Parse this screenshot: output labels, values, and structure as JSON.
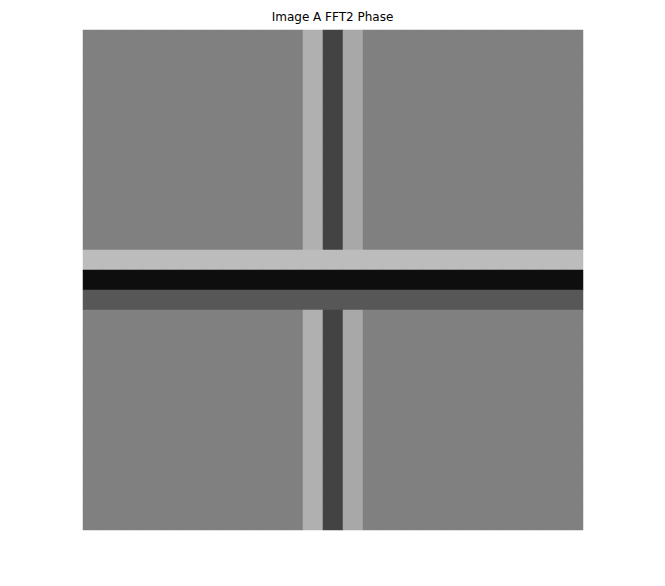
{
  "chart_data": {
    "type": "heatmap",
    "title": "Image A FFT2 Phase",
    "tick_labels": false,
    "grid": false,
    "zlim": [
      -3.1416,
      3.1416
    ],
    "cells": [
      [
        0,
        0,
        0,
        0,
        0,
        0,
        0,
        0,
        0,
        0,
        0,
        1.2,
        -1.5,
        1.0,
        0,
        0,
        0,
        0,
        0,
        0,
        0,
        0,
        0,
        0,
        0
      ],
      [
        0,
        0,
        0,
        0,
        0,
        0,
        0,
        0,
        0,
        0,
        0,
        1.2,
        -1.5,
        1.0,
        0,
        0,
        0,
        0,
        0,
        0,
        0,
        0,
        0,
        0,
        0
      ],
      [
        0,
        0,
        0,
        0,
        0,
        0,
        0,
        0,
        0,
        0,
        0,
        1.2,
        -1.5,
        1.0,
        0,
        0,
        0,
        0,
        0,
        0,
        0,
        0,
        0,
        0,
        0
      ],
      [
        0,
        0,
        0,
        0,
        0,
        0,
        0,
        0,
        0,
        0,
        0,
        1.2,
        -1.5,
        1.0,
        0,
        0,
        0,
        0,
        0,
        0,
        0,
        0,
        0,
        0,
        0
      ],
      [
        0,
        0,
        0,
        0,
        0,
        0,
        0,
        0,
        0,
        0,
        0,
        1.2,
        -1.5,
        1.0,
        0,
        0,
        0,
        0,
        0,
        0,
        0,
        0,
        0,
        0,
        0
      ],
      [
        0,
        0,
        0,
        0,
        0,
        0,
        0,
        0,
        0,
        0,
        0,
        1.2,
        -1.5,
        1.0,
        0,
        0,
        0,
        0,
        0,
        0,
        0,
        0,
        0,
        0,
        0
      ],
      [
        0,
        0,
        0,
        0,
        0,
        0,
        0,
        0,
        0,
        0,
        0,
        1.2,
        -1.5,
        1.0,
        0,
        0,
        0,
        0,
        0,
        0,
        0,
        0,
        0,
        0,
        0
      ],
      [
        0,
        0,
        0,
        0,
        0,
        0,
        0,
        0,
        0,
        0,
        0,
        1.2,
        -1.5,
        1.0,
        0,
        0,
        0,
        0,
        0,
        0,
        0,
        0,
        0,
        0,
        0
      ],
      [
        0,
        0,
        0,
        0,
        0,
        0,
        0,
        0,
        0,
        0,
        0,
        1.2,
        -1.5,
        1.0,
        0,
        0,
        0,
        0,
        0,
        0,
        0,
        0,
        0,
        0,
        0
      ],
      [
        0,
        0,
        0,
        0,
        0,
        0,
        0,
        0,
        0,
        0,
        0,
        1.2,
        -1.5,
        1.0,
        0,
        0,
        0,
        0,
        0,
        0,
        0,
        0,
        0,
        0,
        0
      ],
      [
        0,
        0,
        0,
        0,
        0,
        0,
        0,
        0,
        0,
        0,
        0,
        1.2,
        -1.5,
        1.0,
        0,
        0,
        0,
        0,
        0,
        0,
        0,
        0,
        0,
        0,
        0
      ],
      [
        1.5,
        1.5,
        1.5,
        1.5,
        1.5,
        1.5,
        1.5,
        1.5,
        1.5,
        1.5,
        1.5,
        1.5,
        1.5,
        1.5,
        1.5,
        1.5,
        1.5,
        1.5,
        1.5,
        1.5,
        1.5,
        1.5,
        1.5,
        1.5,
        1.5
      ],
      [
        -2.8,
        -2.8,
        -2.8,
        -2.8,
        -2.8,
        -2.8,
        -2.8,
        -2.8,
        -2.8,
        -2.8,
        -2.8,
        -2.8,
        -2.8,
        -2.8,
        -2.8,
        -2.8,
        -2.8,
        -2.8,
        -2.8,
        -2.8,
        -2.8,
        -2.8,
        -2.8,
        -2.8,
        -2.8
      ],
      [
        -1.0,
        -1.0,
        -1.0,
        -1.0,
        -1.0,
        -1.0,
        -1.0,
        -1.0,
        -1.0,
        -1.0,
        -1.0,
        -1.0,
        -1.0,
        -1.0,
        -1.0,
        -1.0,
        -1.0,
        -1.0,
        -1.0,
        -1.0,
        -1.0,
        -1.0,
        -1.0,
        -1.0,
        -1.0
      ],
      [
        0,
        0,
        0,
        0,
        0,
        0,
        0,
        0,
        0,
        0,
        0,
        1.2,
        -1.5,
        1.0,
        0,
        0,
        0,
        0,
        0,
        0,
        0,
        0,
        0,
        0,
        0
      ],
      [
        0,
        0,
        0,
        0,
        0,
        0,
        0,
        0,
        0,
        0,
        0,
        1.2,
        -1.5,
        1.0,
        0,
        0,
        0,
        0,
        0,
        0,
        0,
        0,
        0,
        0,
        0
      ],
      [
        0,
        0,
        0,
        0,
        0,
        0,
        0,
        0,
        0,
        0,
        0,
        1.2,
        -1.5,
        1.0,
        0,
        0,
        0,
        0,
        0,
        0,
        0,
        0,
        0,
        0,
        0
      ],
      [
        0,
        0,
        0,
        0,
        0,
        0,
        0,
        0,
        0,
        0,
        0,
        1.2,
        -1.5,
        1.0,
        0,
        0,
        0,
        0,
        0,
        0,
        0,
        0,
        0,
        0,
        0
      ],
      [
        0,
        0,
        0,
        0,
        0,
        0,
        0,
        0,
        0,
        0,
        0,
        1.2,
        -1.5,
        1.0,
        0,
        0,
        0,
        0,
        0,
        0,
        0,
        0,
        0,
        0,
        0
      ],
      [
        0,
        0,
        0,
        0,
        0,
        0,
        0,
        0,
        0,
        0,
        0,
        1.2,
        -1.5,
        1.0,
        0,
        0,
        0,
        0,
        0,
        0,
        0,
        0,
        0,
        0,
        0
      ],
      [
        0,
        0,
        0,
        0,
        0,
        0,
        0,
        0,
        0,
        0,
        0,
        1.2,
        -1.5,
        1.0,
        0,
        0,
        0,
        0,
        0,
        0,
        0,
        0,
        0,
        0,
        0
      ],
      [
        0,
        0,
        0,
        0,
        0,
        0,
        0,
        0,
        0,
        0,
        0,
        1.2,
        -1.5,
        1.0,
        0,
        0,
        0,
        0,
        0,
        0,
        0,
        0,
        0,
        0,
        0
      ],
      [
        0,
        0,
        0,
        0,
        0,
        0,
        0,
        0,
        0,
        0,
        0,
        1.2,
        -1.5,
        1.0,
        0,
        0,
        0,
        0,
        0,
        0,
        0,
        0,
        0,
        0,
        0
      ],
      [
        0,
        0,
        0,
        0,
        0,
        0,
        0,
        0,
        0,
        0,
        0,
        1.2,
        -1.5,
        1.0,
        0,
        0,
        0,
        0,
        0,
        0,
        0,
        0,
        0,
        0,
        0
      ],
      [
        0,
        0,
        0,
        0,
        0,
        0,
        0,
        0,
        0,
        0,
        0,
        1.2,
        -1.5,
        1.0,
        0,
        0,
        0,
        0,
        0,
        0,
        0,
        0,
        0,
        0,
        0
      ]
    ]
  }
}
